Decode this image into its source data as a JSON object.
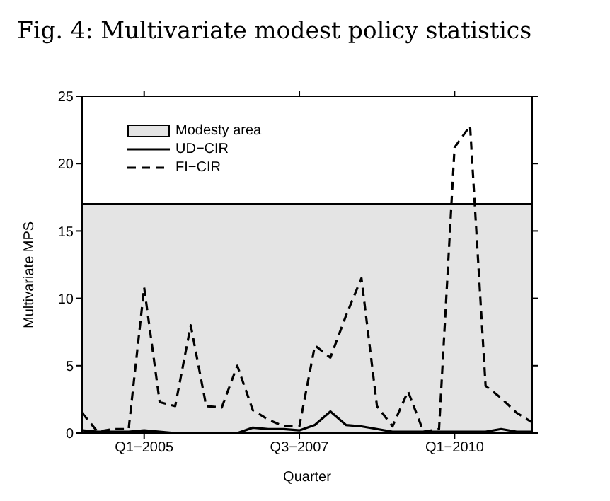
{
  "chart_data": {
    "type": "line",
    "title": "Fig. 4: Multivariate modest policy statistics",
    "xlabel": "Quarter",
    "ylabel": "Multivariate MPS",
    "categories": [
      null,
      null,
      null,
      null,
      "Q1−2005",
      null,
      null,
      null,
      null,
      null,
      null,
      null,
      null,
      null,
      "Q3−2007",
      null,
      null,
      null,
      null,
      null,
      null,
      null,
      null,
      null,
      "Q1−2010",
      null,
      null,
      null,
      null,
      null
    ],
    "series": [
      {
        "name": "UD−CIR",
        "color": "#000000",
        "line_style": "solid",
        "values": [
          0.2,
          0.1,
          0.1,
          0.1,
          0.2,
          0.1,
          0,
          0,
          0,
          0,
          0,
          0.4,
          0.3,
          0.3,
          0.2,
          0.6,
          1.6,
          0.6,
          0.5,
          0.3,
          0.1,
          0.1,
          0.1,
          0.1,
          0.1,
          0.1,
          0.1,
          0.3,
          0.1,
          0.1
        ]
      },
      {
        "name": "FI−CIR",
        "color": "#000000",
        "line_style": "dashed",
        "values": [
          1.5,
          0.1,
          0.3,
          0.3,
          10.8,
          2.3,
          2.0,
          8.0,
          2.0,
          1.9,
          5.0,
          1.7,
          1.0,
          0.5,
          0.5,
          6.5,
          5.6,
          8.7,
          11.5,
          2.0,
          0.5,
          3.1,
          0.1,
          0.3,
          21.2,
          22.8,
          3.5,
          2.6,
          1.5,
          0.8
        ]
      }
    ],
    "ref_lines": [
      {
        "axis": "y",
        "value": 17,
        "color": "#000000"
      }
    ],
    "bands": [
      {
        "axis": "y",
        "from": 0,
        "to": 17,
        "label": "Modesty area",
        "color": "#e4e4e4"
      }
    ],
    "ylim": [
      0,
      25
    ],
    "yticks": [
      0,
      5,
      10,
      15,
      20,
      25
    ],
    "grid": false,
    "legend": "top left",
    "marker": "none"
  }
}
